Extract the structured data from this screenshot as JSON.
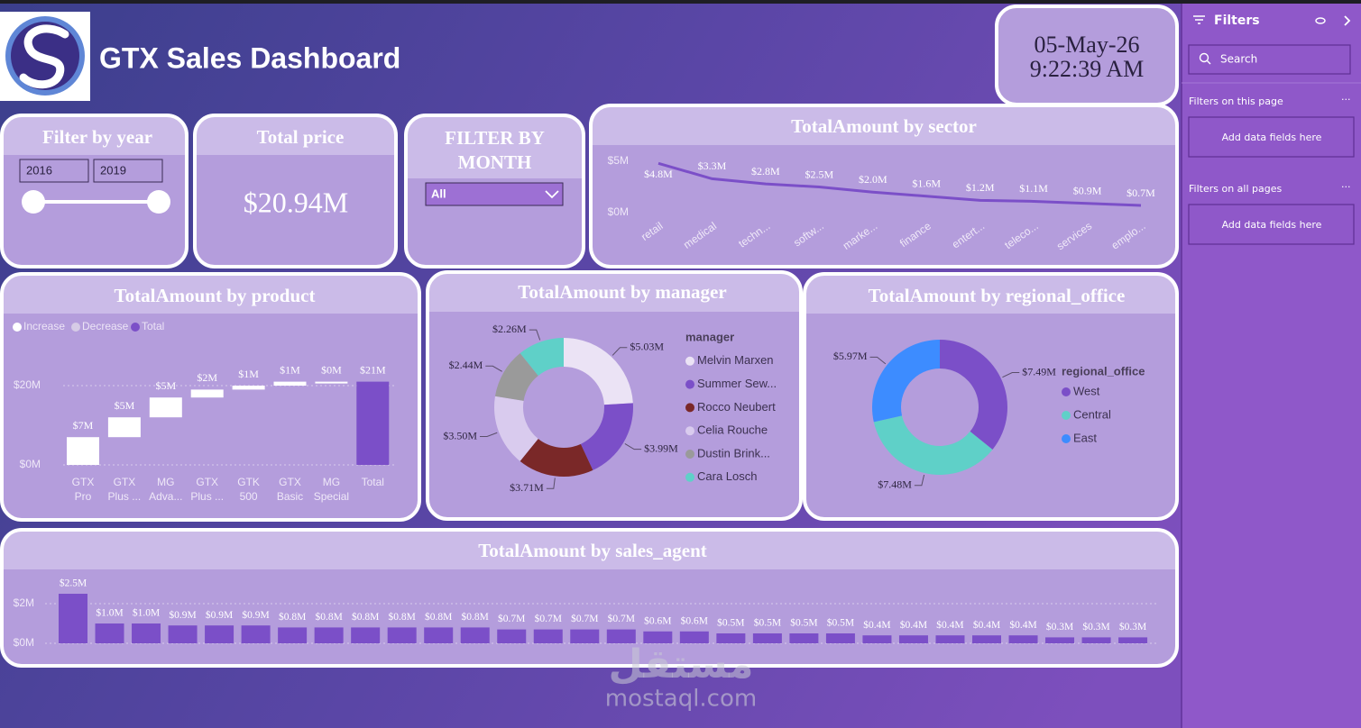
{
  "header": {
    "title": "GTX Sales Dashboard",
    "date": "05-May-26",
    "time": "9:22:39 AM"
  },
  "year_filter": {
    "title": "Filter by year",
    "from": "2016",
    "to": "2019"
  },
  "total_price": {
    "title": "Total price",
    "value": "$20.94M"
  },
  "month_filter": {
    "title": "FILTER BY MONTH",
    "selected": "All"
  },
  "filters_pane": {
    "title": "Filters",
    "search": "Search",
    "on_this_page": "Filters on this page",
    "add_this_page": "Add data fields here",
    "on_all_pages": "Filters on all pages",
    "add_all_pages": "Add data fields here"
  },
  "watermark": {
    "arabic": "مستقل",
    "latin": "mostaql.com"
  },
  "chart_data": [
    {
      "type": "line",
      "title": "TotalAmount by sector",
      "categories": [
        "retail",
        "medical",
        "techn...",
        "softw...",
        "marke...",
        "finance",
        "entert...",
        "teleco...",
        "services",
        "emplo..."
      ],
      "values": [
        4.8,
        3.3,
        2.8,
        2.5,
        2.0,
        1.6,
        1.2,
        1.1,
        0.9,
        0.7
      ],
      "value_labels": [
        "$4.8M",
        "$3.3M",
        "$2.8M",
        "$2.5M",
        "$2.0M",
        "$1.6M",
        "$1.2M",
        "$1.1M",
        "$0.9M",
        "$0.7M"
      ],
      "color": "#7b4fc8",
      "ylim": [
        0,
        5
      ],
      "yticks": [
        {
          "value": 0,
          "label": "$0M"
        },
        {
          "value": 5,
          "label": "$5M"
        }
      ]
    },
    {
      "type": "waterfall",
      "title": "TotalAmount by product",
      "legend": [
        {
          "name": "Increase",
          "color": "#ffffff"
        },
        {
          "name": "Decrease",
          "color": "#d6cbe6"
        },
        {
          "name": "Total",
          "color": "#7b4fc8"
        }
      ],
      "categories": [
        "GTX Pro",
        "GTX Plus ...",
        "MG Adva...",
        "GTX Plus ...",
        "GTK 500",
        "GTX Basic",
        "MG Special",
        "Total"
      ],
      "values": [
        7,
        5,
        5,
        2,
        1,
        1,
        0,
        21
      ],
      "value_labels": [
        "$7M",
        "$5M",
        "$5M",
        "$2M",
        "$1M",
        "$1M",
        "$0M",
        "$21M"
      ],
      "ylim": [
        0,
        25
      ],
      "grid": true,
      "yticks": [
        {
          "value": 0,
          "label": "$0M"
        },
        {
          "value": 20,
          "label": "$20M"
        }
      ]
    },
    {
      "type": "donut",
      "title": "TotalAmount by manager",
      "legend_title": "manager",
      "categories": [
        "Melvin Marxen",
        "Summer Sew...",
        "Rocco Neubert",
        "Celia Rouche",
        "Dustin Brink...",
        "Cara Losch"
      ],
      "values": [
        5.03,
        3.99,
        3.71,
        3.5,
        2.44,
        2.26
      ],
      "value_labels": [
        "$5.03M",
        "$3.99M",
        "$3.71M",
        "$3.50M",
        "$2.44M",
        "$2.26M"
      ],
      "colors": [
        "#ebe3f5",
        "#7b4fc8",
        "#7a2828",
        "#d9cbee",
        "#9a9a9a",
        "#5fd0c8"
      ]
    },
    {
      "type": "donut",
      "title": "TotalAmount by regional_office",
      "legend_title": "regional_office",
      "categories": [
        "West",
        "Central",
        "East"
      ],
      "values": [
        7.49,
        7.48,
        5.97
      ],
      "value_labels": [
        "$7.49M",
        "$7.48M",
        "$5.97M"
      ],
      "colors": [
        "#7b4fc8",
        "#5fd0c8",
        "#3d8cff"
      ]
    },
    {
      "type": "bar",
      "title": "TotalAmount by sales_agent",
      "categories": [
        null,
        null,
        null,
        null,
        null,
        null,
        null,
        null,
        null,
        null,
        null,
        null,
        null,
        null,
        null,
        null,
        null,
        null,
        null,
        null,
        null,
        null,
        null,
        null,
        null,
        null,
        null,
        null,
        null,
        null
      ],
      "values": [
        2.5,
        1.0,
        1.0,
        0.9,
        0.9,
        0.9,
        0.8,
        0.8,
        0.8,
        0.8,
        0.8,
        0.8,
        0.7,
        0.7,
        0.7,
        0.7,
        0.6,
        0.6,
        0.5,
        0.5,
        0.5,
        0.5,
        0.4,
        0.4,
        0.4,
        0.4,
        0.4,
        0.3,
        0.3,
        0.3
      ],
      "value_labels": [
        "$2.5M",
        "$1.0M",
        "$1.0M",
        "$0.9M",
        "$0.9M",
        "$0.9M",
        "$0.8M",
        "$0.8M",
        "$0.8M",
        "$0.8M",
        "$0.8M",
        "$0.8M",
        "$0.7M",
        "$0.7M",
        "$0.7M",
        "$0.7M",
        "$0.6M",
        "$0.6M",
        "$0.5M",
        "$0.5M",
        "$0.5M",
        "$0.5M",
        "$0.4M",
        "$0.4M",
        "$0.4M",
        "$0.4M",
        "$0.4M",
        "$0.3M",
        "$0.3M",
        "$0.3M"
      ],
      "color": "#7b4fc8",
      "ylim": [
        0,
        2.5
      ],
      "grid": true,
      "yticks": [
        {
          "value": 0,
          "label": "$0M"
        },
        {
          "value": 2,
          "label": "$2M"
        }
      ]
    }
  ]
}
